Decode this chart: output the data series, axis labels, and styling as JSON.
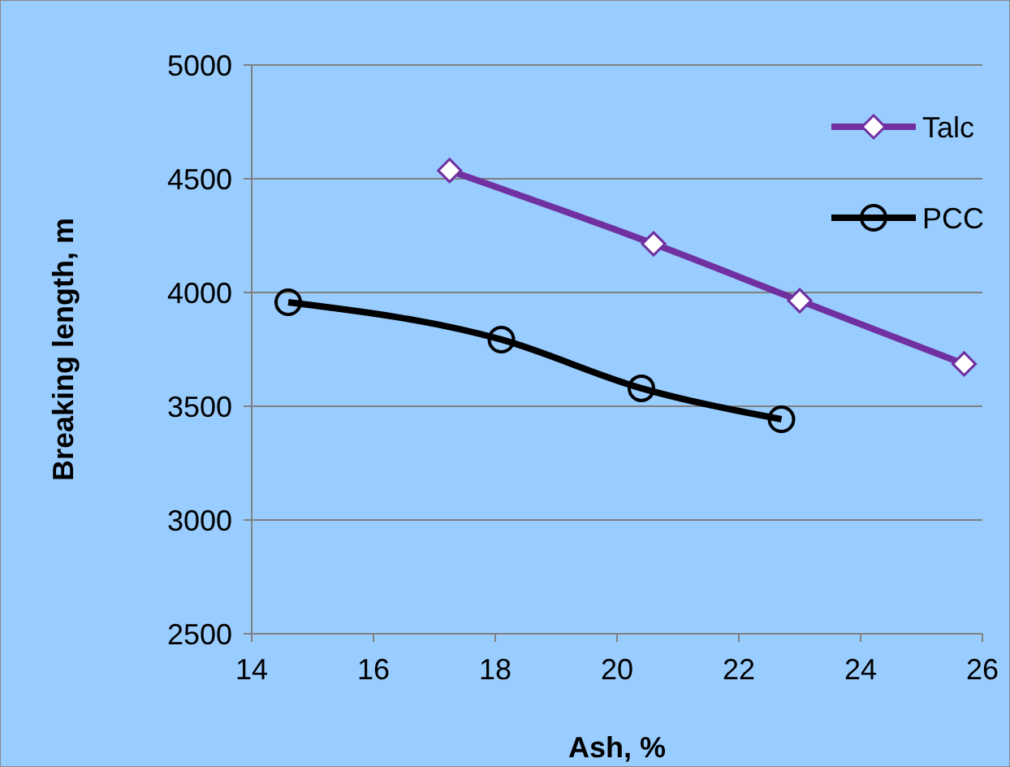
{
  "chart_data": {
    "type": "line",
    "xlabel": "Ash, %",
    "ylabel": "Breaking length, m",
    "xlim": [
      14,
      26
    ],
    "xticks": [
      14,
      16,
      18,
      20,
      22,
      24,
      26
    ],
    "ylim": [
      2500,
      5000
    ],
    "yticks": [
      2500,
      3000,
      3500,
      4000,
      4500,
      5000
    ],
    "grid": "y",
    "legend": "top right",
    "line_style": "solid",
    "series": [
      {
        "name": "Talc",
        "color": "#7030a0",
        "marker": "diamond",
        "x": [
          17.25,
          20.6,
          23.0,
          25.7
        ],
        "values": [
          4536,
          4214,
          3964,
          3686
        ]
      },
      {
        "name": "PCC",
        "color": "#000000",
        "marker": "circle",
        "x": [
          14.6,
          18.1,
          20.4,
          22.7
        ],
        "values": [
          3957,
          3793,
          3579,
          3443
        ]
      }
    ]
  }
}
